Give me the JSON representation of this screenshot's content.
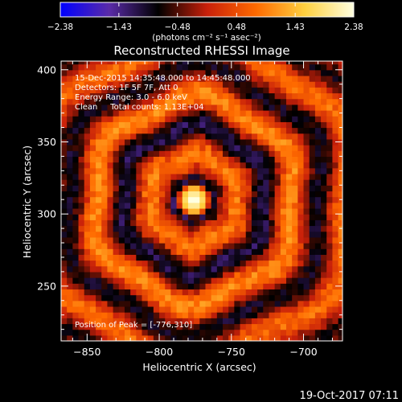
{
  "chart_data": {
    "type": "heatmap",
    "title": "Reconstructed RHESSI Image",
    "xlabel": "Heliocentric X (arcsec)",
    "ylabel": "Heliocentric Y (arcsec)",
    "xlim": [
      -868,
      -673
    ],
    "ylim": [
      212,
      406
    ],
    "x_ticks": [
      -850,
      -800,
      -750,
      -700
    ],
    "y_ticks": [
      250,
      300,
      350,
      400
    ],
    "x_tick_labels": [
      "−850",
      "−800",
      "−750",
      "−700"
    ],
    "y_tick_labels": [
      "250",
      "300",
      "350",
      "400"
    ],
    "colorbar": {
      "min": -2.38,
      "max": 2.38,
      "ticks": [
        -2.38,
        -1.43,
        -0.48,
        0.48,
        1.43,
        2.38
      ],
      "tick_labels": [
        "−2.38",
        "−1.43",
        "−0.48",
        "0.48",
        "1.43",
        "2.38"
      ],
      "units": "(photons cm⁻² s⁻¹ asec⁻²)",
      "colors": [
        "#0000ff",
        "#5a2ba8",
        "#000000",
        "#c8200a",
        "#ff6a00",
        "#ffd040",
        "#ffffe0"
      ]
    },
    "info_lines": [
      "15-Dec-2015 14:35:48.000 to 14:45:48.000",
      "Detectors: 1F 5F 7F, Att 0",
      "Energy Range: 3.0 - 6.0 keV",
      "Clean     Total counts: 1.13E+04"
    ],
    "peak_label": "Position of Peak = [-776,310]",
    "peak": [
      -776,
      310
    ],
    "source_center": [
      -776,
      310
    ],
    "grid": false
  },
  "footer": {
    "timestamp": "19-Oct-2017 07:11"
  }
}
